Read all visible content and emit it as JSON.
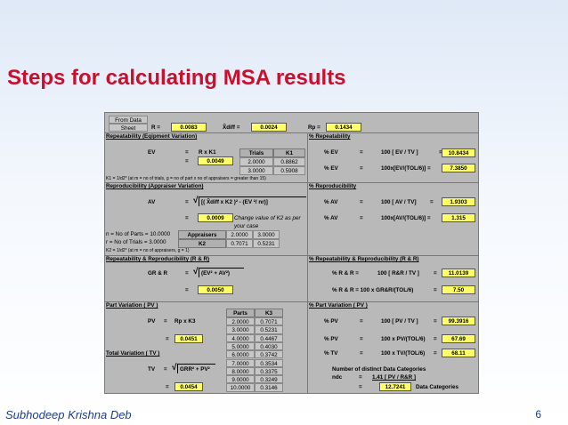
{
  "slide": {
    "title": "Steps for calculating MSA results",
    "author": "Subhodeep Krishna Deb",
    "page": "6"
  },
  "colors": {
    "title": "#c8102e",
    "highlight": "#ffff66",
    "sheet_bg": "#b9b9b9",
    "footer": "#1f3c88"
  },
  "header": {
    "from_data_label": "From Data",
    "sheet_label": "Sheet",
    "r_label": "R =",
    "r_value": "0.0083",
    "xdiff_label": "X̃diff =",
    "xdiff_value": "0.0024",
    "rp_label": "Rp =",
    "rp_value": "0.1434"
  },
  "ev": {
    "section": "Repeatability (Eqipment Variation)",
    "pct_section": "% Repeatability",
    "label": "EV",
    "eq": "=",
    "formula": "R x K1",
    "eq2": "=",
    "value": "0.0049",
    "table_headers": [
      "Trials",
      "K1"
    ],
    "table_rows": [
      [
        "2.0000",
        "0.8862"
      ],
      [
        "3.0000",
        "0.5908"
      ]
    ],
    "note": "K1 = 1/d2* (at m = no of trials, g = no of part x no of appraisers = greater than 15)",
    "pct1_label": "% EV",
    "pct1_eq": "=",
    "pct1_formula": "100 [ EV / TV ]",
    "pct1_eq2": "=",
    "pct1_value": "10.8434",
    "pct2_label": "% EV",
    "pct2_eq": "=",
    "pct2_formula": "100x[EV/(TOL/6)] =",
    "pct2_value": "7.3850"
  },
  "av": {
    "section": "Reproducibility (Appraiser Variation)",
    "pct_section": "% Reproducibility",
    "label": "AV",
    "eq": "=",
    "formula": "[( X̃diff x K2 )² - (EV ²/ nr)]",
    "eq2": "=",
    "value": "0.0009",
    "k2_note_1": "Change value of K2 as per",
    "k2_note_2": "your case",
    "n_line": "n = No of Parts =  10.0000",
    "r_line": "r = No of Trials =  3.0000",
    "k2_line": "K2 = 1/d2* (at m = no of appraisers, g = 1)",
    "table_headers": [
      "Appraisers",
      "2.0000",
      "3.0000"
    ],
    "table_row": [
      "K2",
      "0.7071",
      "0.5231"
    ],
    "pct1_label": "% AV",
    "pct1_eq": "=",
    "pct1_formula": "100 [ AV / TV]",
    "pct1_eq2": "=",
    "pct1_value": "1.9303",
    "pct2_label": "% AV",
    "pct2_eq": "=",
    "pct2_formula": "100x[AV/(TOL/6)] =",
    "pct2_value": "1.315"
  },
  "grr": {
    "section": "Repeatability & Reproducibility (R & R)",
    "pct_section": "% Repeatability & Reproducibility (R & R)",
    "label": "GR & R",
    "eq": "=",
    "formula": "(EV² + AV²)",
    "eq2": "=",
    "value": "0.0050",
    "pct1_label": "% R & R =",
    "pct1_formula": "100 [ R&R / TV ]",
    "pct1_eq": "=",
    "pct1_value": "11.0139",
    "pct2_label": "% R & R = 100 x GR&R/(TOL/6)",
    "pct2_eq": "=",
    "pct2_value": "7.50"
  },
  "pv": {
    "section": "Part Variation ( PV )",
    "pct_section": "% Part Variation ( PV )",
    "label": "PV",
    "eq": "=",
    "formula": "Rp  x K3",
    "eq2": "=",
    "value": "0.0451",
    "table_headers": [
      "Parts",
      "K3"
    ],
    "table_rows": [
      [
        "2.0000",
        "0.7071"
      ],
      [
        "3.0000",
        "0.5231"
      ],
      [
        "4.0000",
        "0.4467"
      ],
      [
        "5.0000",
        "0.4030"
      ],
      [
        "6.0000",
        "0.3742"
      ],
      [
        "7.0000",
        "0.3534"
      ],
      [
        "8.0000",
        "0.3375"
      ],
      [
        "9.0000",
        "0.3249"
      ],
      [
        "10.0000",
        "0.3146"
      ]
    ],
    "pct1_label": "% PV",
    "pct1_eq": "=",
    "pct1_formula": "100 [ PV / TV ]",
    "pct1_eq2": "=",
    "pct1_value": "99.3916",
    "pct2_label": "% PV",
    "pct2_eq": "=",
    "pct2_formula": "100 x PV/(TOL/6)",
    "pct2_eq2": "=",
    "pct2_value": "67.69"
  },
  "tv": {
    "section": "Total Variation ( TV )",
    "label": "TV",
    "eq": "=",
    "formula": "GRR² + PV²",
    "eq2": "=",
    "value": "0.0454",
    "pct_label": "% TV",
    "pct_eq": "=",
    "pct_formula": "100 x TV/(TOL/6)",
    "pct_eq2": "=",
    "pct_value": "68.11",
    "ndc_heading": "Number of distinct Data Categories",
    "ndc_label": "ndc",
    "ndc_eq": "=",
    "ndc_formula": "1.41 [ PV / R&R ]",
    "ndc_eq2": "=",
    "ndc_value": "12.7241",
    "ndc_unit": "Data Categories"
  }
}
